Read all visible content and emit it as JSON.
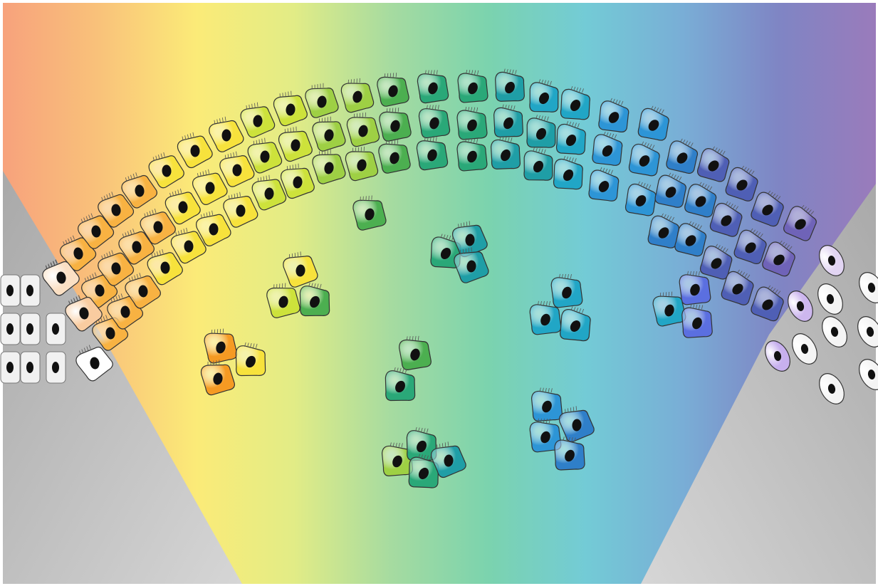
{
  "figure": {
    "spectrum_colors": [
      "#f7a27c",
      "#f9c27a",
      "#fbeb78",
      "#e2ec86",
      "#a6dba0",
      "#7bd3ae",
      "#73cbd6",
      "#79aed6",
      "#7f85c4",
      "#9a7bbb"
    ],
    "side_panel_colors": [
      "#a9a9a9",
      "#d6d6d6"
    ],
    "cell_palette": {
      "orange": "#f59a23",
      "light-orange": "#f8b242",
      "yellow": "#f7e23c",
      "yellow-green": "#cde23b",
      "lime": "#9ed044",
      "green": "#4caf50",
      "teal-green": "#2aa878",
      "teal": "#1f9ea6",
      "cyan": "#21a6c6",
      "sky-blue": "#2d95d6",
      "blue": "#2f7fc9",
      "indigo": "#4f5fb5",
      "violet": "#6f63b8",
      "white": "#f4f4f4"
    },
    "nucleus_color": "#111111",
    "cell_outline_color": "#333333"
  }
}
